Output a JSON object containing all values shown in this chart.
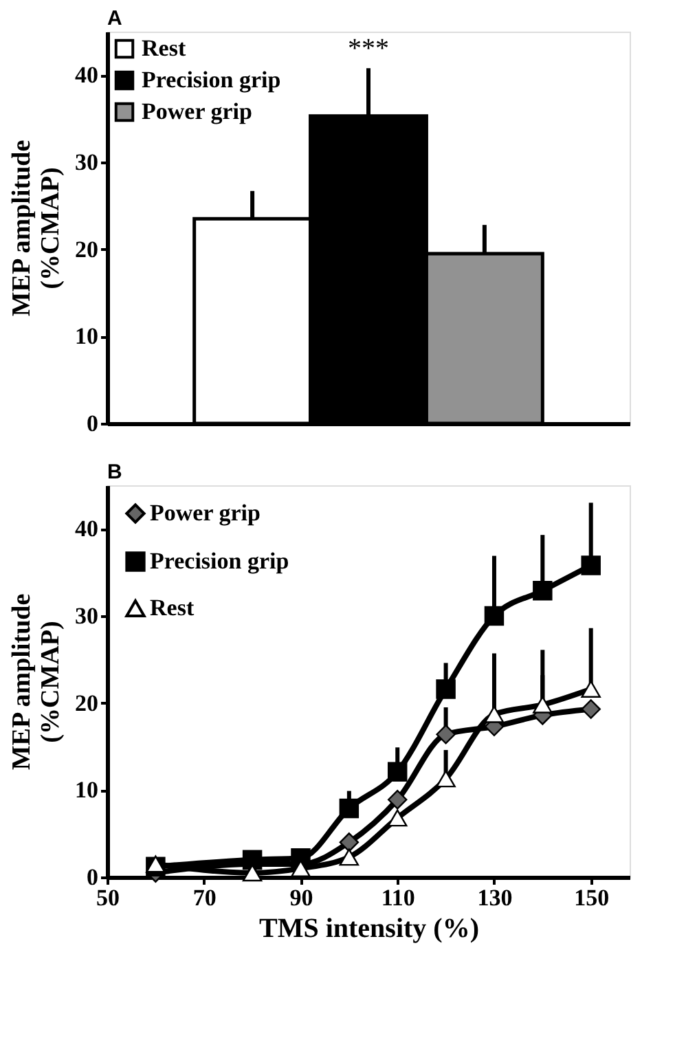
{
  "chart_data": [
    {
      "type": "bar",
      "title": "A",
      "ylabel": "MEP amplitude\n(%CMAP)",
      "categories": [
        null
      ],
      "ylim": [
        0,
        45
      ],
      "yticks": [
        0,
        10,
        20,
        30,
        40
      ],
      "tick_labels": "y",
      "legend": "top left",
      "annotations": [
        "***"
      ],
      "series": [
        {
          "name": "Rest",
          "color": "#ffffff",
          "values": [
            23.5
          ],
          "errors": [
            [
              23.5,
              26.7
            ]
          ]
        },
        {
          "name": "Precision grip",
          "color": "#000000",
          "values": [
            35.3
          ],
          "errors": [
            [
              35.3,
              40.8
            ]
          ]
        },
        {
          "name": "Power grip",
          "color": "#929292",
          "values": [
            19.5
          ],
          "errors": [
            [
              19.5,
              22.8
            ]
          ]
        }
      ]
    },
    {
      "type": "line",
      "title": "B",
      "xlabel": "TMS intensity (%)",
      "ylabel": "MEP amplitude\n(%CMAP)",
      "xlim": [
        50,
        158
      ],
      "xticks": [
        50,
        70,
        90,
        110,
        130,
        150
      ],
      "ylim": [
        0,
        45
      ],
      "yticks": [
        0,
        10,
        20,
        30,
        40
      ],
      "legend": "top left",
      "line_style": "solid",
      "x": [
        60,
        80,
        90,
        100,
        110,
        120,
        130,
        140,
        150
      ],
      "series": [
        {
          "name": "Power grip",
          "color": "#666666",
          "marker": "diamond",
          "values": [
            0.5,
            1.5,
            1.5,
            4.0,
            8.9,
            16.4,
            17.3,
            18.6,
            19.3
          ],
          "errors": [
            null,
            null,
            null,
            null,
            null,
            [
              16.4,
              19.5
            ],
            null,
            [
              18.6,
              23.2
            ],
            null
          ]
        },
        {
          "name": "Precision grip",
          "color": "#000000",
          "marker": "square",
          "values": [
            1.2,
            2.0,
            2.2,
            7.9,
            12.1,
            21.6,
            30.0,
            32.9,
            35.8
          ],
          "errors": [
            null,
            null,
            null,
            [
              7.9,
              9.9
            ],
            [
              12.1,
              14.9
            ],
            [
              21.6,
              24.6
            ],
            [
              30.0,
              36.9
            ],
            [
              32.9,
              39.3
            ],
            [
              35.8,
              43.0
            ]
          ]
        },
        {
          "name": "Rest",
          "color": "#ffffff",
          "marker": "triangle",
          "values": [
            1.5,
            0.5,
            1.0,
            2.3,
            6.8,
            11.3,
            18.7,
            19.8,
            21.6
          ],
          "errors": [
            null,
            null,
            null,
            null,
            null,
            [
              11.3,
              14.6
            ],
            [
              18.7,
              25.7
            ],
            [
              19.8,
              26.1
            ],
            [
              21.6,
              28.6
            ]
          ]
        }
      ]
    }
  ]
}
